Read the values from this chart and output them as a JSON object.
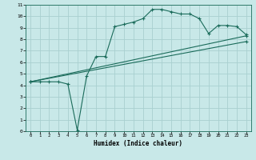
{
  "xlabel": "Humidex (Indice chaleur)",
  "bg_color": "#c8e8e8",
  "grid_color": "#a8d0d0",
  "line_color": "#1a6b5a",
  "xlim": [
    -0.5,
    23.5
  ],
  "ylim": [
    0,
    11
  ],
  "xticks": [
    0,
    1,
    2,
    3,
    4,
    5,
    6,
    7,
    8,
    9,
    10,
    11,
    12,
    13,
    14,
    15,
    16,
    17,
    18,
    19,
    20,
    21,
    22,
    23
  ],
  "yticks": [
    0,
    1,
    2,
    3,
    4,
    5,
    6,
    7,
    8,
    9,
    10,
    11
  ],
  "line1_x": [
    0,
    1,
    2,
    3,
    4,
    5,
    6,
    7,
    8,
    9,
    10,
    11,
    12,
    13,
    14,
    15,
    16,
    17,
    18,
    19,
    20,
    21,
    22,
    23
  ],
  "line1_y": [
    4.3,
    4.3,
    4.3,
    4.3,
    4.1,
    0.1,
    4.8,
    6.5,
    6.5,
    9.1,
    9.3,
    9.5,
    9.8,
    10.6,
    10.6,
    10.4,
    10.2,
    10.2,
    9.8,
    8.5,
    9.2,
    9.2,
    9.1,
    8.4
  ],
  "line2_x": [
    0,
    23
  ],
  "line2_y": [
    4.3,
    8.3
  ],
  "line3_x": [
    0,
    23
  ],
  "line3_y": [
    4.3,
    7.8
  ]
}
